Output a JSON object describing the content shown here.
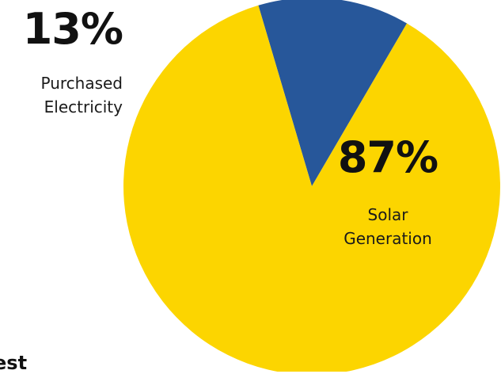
{
  "chart_data": {
    "type": "pie",
    "title": "",
    "slices": [
      {
        "label_line1": "Purchased",
        "label_line2": "Electricity",
        "value": 13,
        "value_text": "13%",
        "color": "#27579a"
      },
      {
        "label_line1": "Solar",
        "label_line2": "Generation",
        "value": 87,
        "value_text": "87%",
        "color": "#fcd500"
      }
    ]
  },
  "footer_fragment": "est"
}
